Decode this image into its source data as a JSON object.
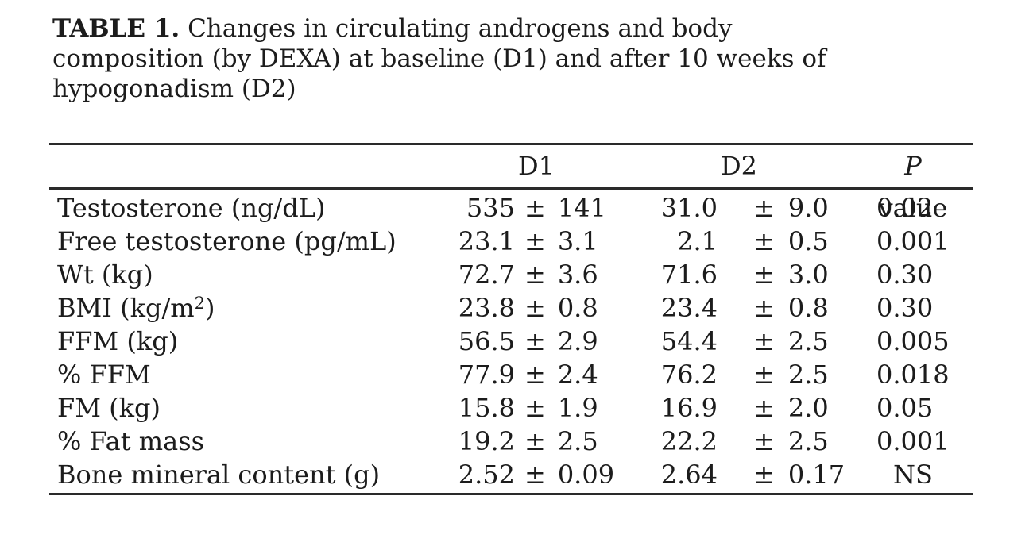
{
  "caption": {
    "label": "TABLE 1.",
    "lines": [
      "Changes in circulating androgens and body",
      "composition (by DEXA) at baseline (D1) and after 10 weeks of",
      "hypogonadism (D2)"
    ]
  },
  "header": {
    "d1": "D1",
    "d2": "D2",
    "p_italic": "P",
    "p_rest": " value"
  },
  "plus_minus": "±",
  "rows": [
    {
      "label": "Testosterone (ng/dL)",
      "sup": "",
      "post": "",
      "d1v": "535",
      "d1e": "141",
      "d2v": "31.0",
      "d2e": "9.0",
      "p": "0.02"
    },
    {
      "label": "Free testosterone (pg/mL)",
      "sup": "",
      "post": "",
      "d1v": "23.1",
      "d1e": "3.1",
      "d2v": "2.1",
      "d2e": "0.5",
      "p": "0.001"
    },
    {
      "label": "Wt (kg)",
      "sup": "",
      "post": "",
      "d1v": "72.7",
      "d1e": "3.6",
      "d2v": "71.6",
      "d2e": "3.0",
      "p": "0.30"
    },
    {
      "label": "BMI (kg/m",
      "sup": "2",
      "post": ")",
      "d1v": "23.8",
      "d1e": "0.8",
      "d2v": "23.4",
      "d2e": "0.8",
      "p": "0.30"
    },
    {
      "label": "FFM (kg)",
      "sup": "",
      "post": "",
      "d1v": "56.5",
      "d1e": "2.9",
      "d2v": "54.4",
      "d2e": "2.5",
      "p": "0.005"
    },
    {
      "label": "% FFM",
      "sup": "",
      "post": "",
      "d1v": "77.9",
      "d1e": "2.4",
      "d2v": "76.2",
      "d2e": "2.5",
      "p": "0.018"
    },
    {
      "label": "FM (kg)",
      "sup": "",
      "post": "",
      "d1v": "15.8",
      "d1e": "1.9",
      "d2v": "16.9",
      "d2e": "2.0",
      "p": "0.05"
    },
    {
      "label": "% Fat mass",
      "sup": "",
      "post": "",
      "d1v": "19.2",
      "d1e": "2.5",
      "d2v": "22.2",
      "d2e": "2.5",
      "p": "0.001"
    },
    {
      "label": "Bone mineral content (g)",
      "sup": "",
      "post": "",
      "d1v": "2.52",
      "d1e": "0.09",
      "d2v": "2.64",
      "d2e": "0.17",
      "p": "NS"
    }
  ]
}
